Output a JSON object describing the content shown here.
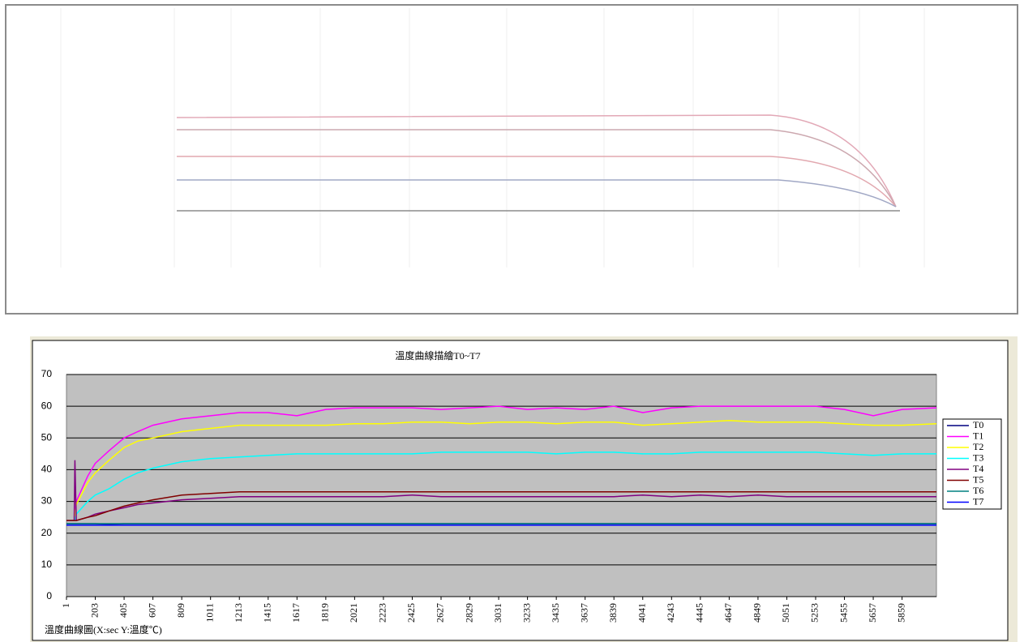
{
  "chart_data": {
    "type": "line",
    "title": "溫度曲線描繪T0~T7",
    "xlabel": "溫度曲線圖(X:sec Y:溫度℃)",
    "x": [
      1,
      55,
      60,
      70,
      150,
      203,
      300,
      405,
      500,
      607,
      809,
      1011,
      1213,
      1415,
      1617,
      1819,
      2021,
      2223,
      2425,
      2627,
      2829,
      3031,
      3233,
      3435,
      3637,
      3839,
      4041,
      4243,
      4445,
      4647,
      4849,
      5051,
      5253,
      5455,
      5657,
      5859,
      6100
    ],
    "xlim": [
      1,
      6100
    ],
    "xticks": [
      1,
      203,
      405,
      607,
      809,
      1011,
      1213,
      1415,
      1617,
      1819,
      2021,
      2223,
      2425,
      2627,
      2829,
      3031,
      3233,
      3435,
      3637,
      3839,
      4041,
      4243,
      4445,
      4647,
      4849,
      5051,
      5253,
      5455,
      5657,
      5859
    ],
    "ylim": [
      0,
      70
    ],
    "yticks": [
      0,
      10,
      20,
      30,
      40,
      50,
      60,
      70
    ],
    "grid": true,
    "legend": "right",
    "series": [
      {
        "name": "T0",
        "color": "#000080",
        "values": [
          23,
          23,
          23,
          23,
          23,
          23,
          22.8,
          23,
          23,
          23,
          23,
          23,
          23,
          23,
          23,
          23,
          23,
          23,
          23,
          23,
          23,
          23,
          23,
          23,
          23,
          23,
          23,
          23,
          23,
          23,
          23,
          23,
          23,
          23,
          23,
          23,
          23
        ]
      },
      {
        "name": "T1",
        "color": "#ff00ff",
        "values": [
          24,
          24,
          25,
          30,
          38,
          42,
          46,
          50,
          52,
          54,
          56,
          57,
          58,
          58,
          57,
          59,
          59.5,
          59.5,
          59.5,
          59,
          59.5,
          60,
          59,
          59.5,
          59,
          60,
          58,
          59.5,
          60,
          60,
          60,
          60,
          60,
          59,
          57,
          59,
          59.5
        ]
      },
      {
        "name": "T2",
        "color": "#ffff00",
        "values": [
          24,
          24,
          25,
          29,
          36,
          39,
          43,
          47,
          49,
          50,
          52,
          53,
          54,
          54,
          54,
          54,
          54.5,
          54.5,
          55,
          55,
          54.5,
          55,
          55,
          54.5,
          55,
          55,
          54,
          54.5,
          55,
          55.5,
          55,
          55,
          55,
          54.5,
          54,
          54,
          54.5
        ]
      },
      {
        "name": "T3",
        "color": "#00ffff",
        "values": [
          24,
          24,
          24,
          26,
          30,
          32,
          34,
          37,
          39,
          40.5,
          42.5,
          43.5,
          44,
          44.5,
          45,
          45,
          45,
          45,
          45,
          45.5,
          45.5,
          45.5,
          45.5,
          45,
          45.5,
          45.5,
          45,
          45,
          45.5,
          45.5,
          45.5,
          45.5,
          45.5,
          45,
          44.5,
          45,
          45
        ]
      },
      {
        "name": "T4",
        "color": "#800080",
        "values": [
          24,
          24,
          43,
          24,
          25,
          26,
          27,
          28,
          29,
          29.5,
          30.5,
          31,
          31.5,
          31.5,
          31.5,
          31.5,
          31.5,
          31.5,
          32,
          31.5,
          31.5,
          31.5,
          31.5,
          31.5,
          31.5,
          31.5,
          32,
          31.5,
          32,
          31.5,
          32,
          31.5,
          31.5,
          31.5,
          31.5,
          31.5,
          31.5
        ]
      },
      {
        "name": "T5",
        "color": "#800000",
        "values": [
          24,
          24,
          24,
          24,
          25,
          25.5,
          27,
          28.5,
          29.5,
          30.5,
          32,
          32.5,
          33,
          33,
          33,
          33,
          33,
          33,
          33,
          33,
          33,
          33,
          33,
          33,
          33,
          33,
          33,
          33,
          33,
          33,
          33,
          33,
          33,
          33,
          33,
          33,
          33
        ]
      },
      {
        "name": "T6",
        "color": "#008080",
        "values": [
          23,
          23,
          23,
          23,
          23,
          23,
          23,
          23,
          23,
          23,
          23,
          23,
          23,
          23,
          23,
          23,
          23,
          23,
          23,
          23,
          23,
          23,
          23,
          23,
          23,
          23,
          23,
          23,
          23,
          23,
          23,
          23,
          23,
          23,
          23,
          23,
          23
        ]
      },
      {
        "name": "T7",
        "color": "#0000ff",
        "values": [
          22.5,
          22.5,
          22.5,
          22.5,
          22.5,
          22.5,
          22.5,
          22.5,
          22.5,
          22.5,
          22.5,
          22.5,
          22.5,
          22.5,
          22.5,
          22.5,
          22.5,
          22.5,
          22.5,
          22.5,
          22.5,
          22.5,
          22.5,
          22.5,
          22.5,
          22.5,
          22.5,
          22.5,
          22.5,
          22.5,
          22.5,
          22.5,
          22.5,
          22.5,
          22.5,
          22.5,
          22.5
        ]
      }
    ]
  }
}
